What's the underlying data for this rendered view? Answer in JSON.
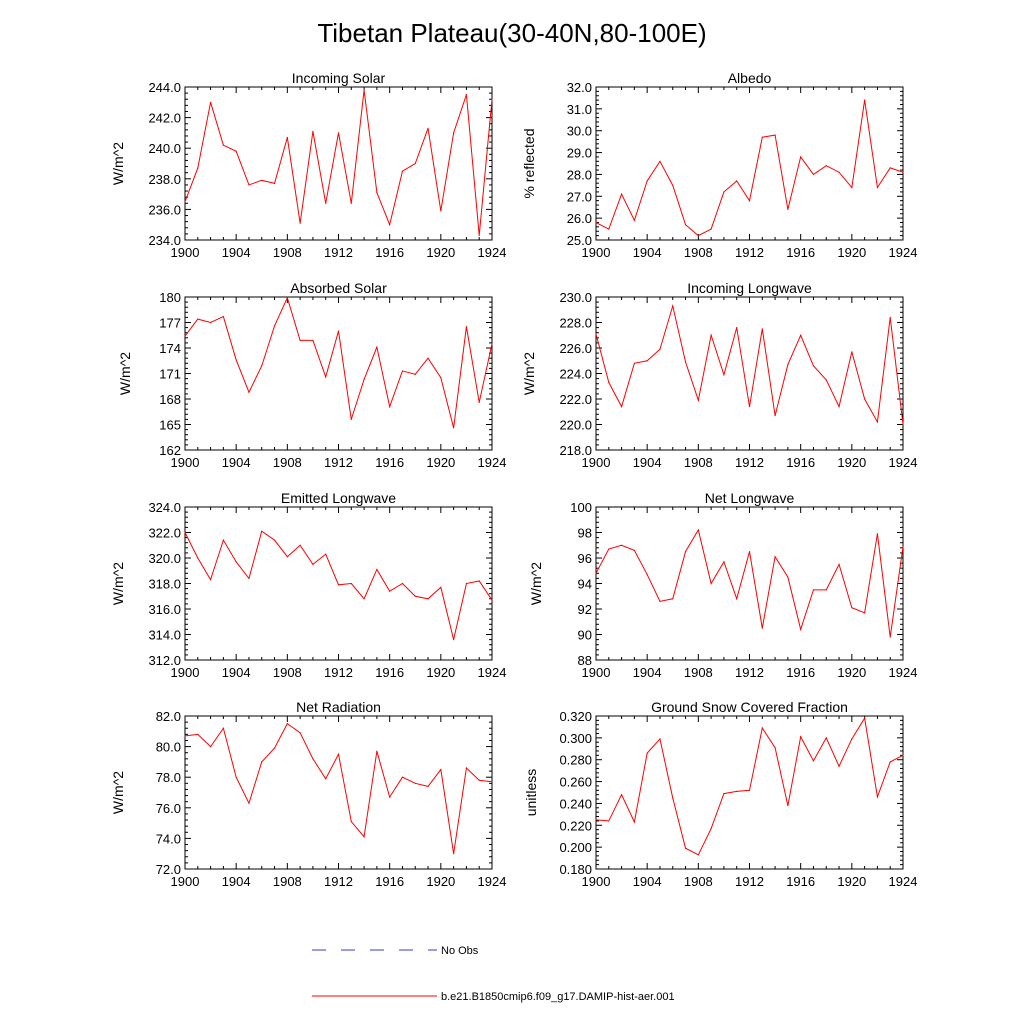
{
  "figure_title": "Tibetan Plateau(30-40N,80-100E)",
  "legend": {
    "entries": [
      {
        "label": "No Obs",
        "color": "#3a3acd",
        "dash": true
      },
      {
        "label": "b.e21.B1850cmip6.f09_g17.DAMIP-hist-aer.001",
        "color": "#ff0000",
        "dash": false
      }
    ]
  },
  "chart_data": [
    {
      "type": "line",
      "title": "Incoming Solar",
      "ylabel": "W/m^2",
      "xlim": [
        1900,
        1924
      ],
      "xticks": [
        1900,
        1904,
        1908,
        1912,
        1916,
        1920,
        1924
      ],
      "ylim": [
        234,
        244
      ],
      "yticks": [
        234,
        236,
        238,
        240,
        242,
        244
      ],
      "ydecimals": 1,
      "x": [
        1900,
        1901,
        1902,
        1903,
        1904,
        1905,
        1906,
        1907,
        1908,
        1909,
        1910,
        1911,
        1912,
        1913,
        1914,
        1915,
        1916,
        1917,
        1918,
        1919,
        1920,
        1921,
        1922,
        1923,
        1924
      ],
      "series": [
        {
          "color": "#ff0000",
          "values": [
            236.5,
            238.7,
            243.0,
            240.2,
            239.8,
            237.6,
            237.9,
            237.7,
            240.7,
            235.1,
            241.1,
            236.4,
            241.0,
            236.4,
            243.8,
            237.1,
            235.0,
            238.5,
            239.0,
            241.3,
            235.9,
            241.0,
            243.5,
            234.3,
            243.2
          ]
        }
      ]
    },
    {
      "type": "line",
      "title": "Albedo",
      "ylabel": "% reflected",
      "xlim": [
        1900,
        1924
      ],
      "xticks": [
        1900,
        1904,
        1908,
        1912,
        1916,
        1920,
        1924
      ],
      "ylim": [
        25,
        32
      ],
      "yticks": [
        25,
        26,
        27,
        28,
        29,
        30,
        31,
        32
      ],
      "ydecimals": 1,
      "x": [
        1900,
        1901,
        1902,
        1903,
        1904,
        1905,
        1906,
        1907,
        1908,
        1909,
        1910,
        1911,
        1912,
        1913,
        1914,
        1915,
        1916,
        1917,
        1918,
        1919,
        1920,
        1921,
        1922,
        1923,
        1924
      ],
      "series": [
        {
          "color": "#ff0000",
          "values": [
            25.8,
            25.5,
            27.1,
            25.9,
            27.7,
            28.6,
            27.5,
            25.7,
            25.2,
            25.5,
            27.2,
            27.7,
            26.8,
            29.7,
            29.8,
            26.4,
            28.8,
            28.0,
            28.4,
            28.1,
            27.4,
            31.4,
            27.4,
            28.3,
            28.1
          ]
        }
      ]
    },
    {
      "type": "line",
      "title": "Absorbed Solar",
      "ylabel": "W/m^2",
      "xlim": [
        1900,
        1924
      ],
      "xticks": [
        1900,
        1904,
        1908,
        1912,
        1916,
        1920,
        1924
      ],
      "ylim": [
        162,
        180
      ],
      "yticks": [
        162,
        165,
        168,
        171,
        174,
        177,
        180
      ],
      "ydecimals": 0,
      "x": [
        1900,
        1901,
        1902,
        1903,
        1904,
        1905,
        1906,
        1907,
        1908,
        1909,
        1910,
        1911,
        1912,
        1913,
        1914,
        1915,
        1916,
        1917,
        1918,
        1919,
        1920,
        1921,
        1922,
        1923,
        1924
      ],
      "series": [
        {
          "color": "#ff0000",
          "values": [
            175.4,
            177.4,
            177.0,
            177.7,
            172.6,
            168.8,
            171.9,
            176.6,
            179.9,
            174.9,
            174.9,
            170.6,
            176.0,
            165.6,
            170.3,
            174.1,
            167.1,
            171.3,
            170.9,
            172.8,
            170.5,
            164.6,
            176.5,
            167.6,
            174.5
          ]
        }
      ]
    },
    {
      "type": "line",
      "title": "Incoming Longwave",
      "ylabel": "W/m^2",
      "xlim": [
        1900,
        1924
      ],
      "xticks": [
        1900,
        1904,
        1908,
        1912,
        1916,
        1920,
        1924
      ],
      "ylim": [
        218,
        230
      ],
      "yticks": [
        218,
        220,
        222,
        224,
        226,
        228,
        230
      ],
      "ydecimals": 1,
      "x": [
        1900,
        1901,
        1902,
        1903,
        1904,
        1905,
        1906,
        1907,
        1908,
        1909,
        1910,
        1911,
        1912,
        1913,
        1914,
        1915,
        1916,
        1917,
        1918,
        1919,
        1920,
        1921,
        1922,
        1923,
        1924
      ],
      "series": [
        {
          "color": "#ff0000",
          "values": [
            227.1,
            223.3,
            221.4,
            224.8,
            225.0,
            225.9,
            229.3,
            224.9,
            221.9,
            227.0,
            223.9,
            227.6,
            221.4,
            227.5,
            220.7,
            224.7,
            227.0,
            224.6,
            223.5,
            221.4,
            225.7,
            222.0,
            220.2,
            228.4,
            220.0
          ]
        }
      ]
    },
    {
      "type": "line",
      "title": "Emitted Longwave",
      "ylabel": "W/m^2",
      "xlim": [
        1900,
        1924
      ],
      "xticks": [
        1900,
        1904,
        1908,
        1912,
        1916,
        1920,
        1924
      ],
      "ylim": [
        312,
        324
      ],
      "yticks": [
        312,
        314,
        316,
        318,
        320,
        322,
        324
      ],
      "ydecimals": 1,
      "x": [
        1900,
        1901,
        1902,
        1903,
        1904,
        1905,
        1906,
        1907,
        1908,
        1909,
        1910,
        1911,
        1912,
        1913,
        1914,
        1915,
        1916,
        1917,
        1918,
        1919,
        1920,
        1921,
        1922,
        1923,
        1924
      ],
      "series": [
        {
          "color": "#ff0000",
          "values": [
            322.0,
            320.0,
            318.3,
            321.4,
            319.7,
            318.4,
            322.1,
            321.4,
            320.1,
            321.0,
            319.5,
            320.3,
            317.9,
            318.0,
            316.8,
            319.1,
            317.4,
            318.0,
            317.0,
            316.8,
            317.7,
            313.6,
            318.0,
            318.2,
            316.7
          ]
        }
      ]
    },
    {
      "type": "line",
      "title": "Net Longwave",
      "ylabel": "W/m^2",
      "xlim": [
        1900,
        1924
      ],
      "xticks": [
        1900,
        1904,
        1908,
        1912,
        1916,
        1920,
        1924
      ],
      "ylim": [
        88,
        100
      ],
      "yticks": [
        88,
        90,
        92,
        94,
        96,
        98,
        100
      ],
      "ydecimals": 0,
      "x": [
        1900,
        1901,
        1902,
        1903,
        1904,
        1905,
        1906,
        1907,
        1908,
        1909,
        1910,
        1911,
        1912,
        1913,
        1914,
        1915,
        1916,
        1917,
        1918,
        1919,
        1920,
        1921,
        1922,
        1923,
        1924
      ],
      "series": [
        {
          "color": "#ff0000",
          "values": [
            94.8,
            96.7,
            97.0,
            96.6,
            94.7,
            92.6,
            92.8,
            96.5,
            98.2,
            94.0,
            95.7,
            92.8,
            96.5,
            90.5,
            96.1,
            94.5,
            90.4,
            93.5,
            93.5,
            95.5,
            92.1,
            91.7,
            97.9,
            89.8,
            96.9
          ]
        }
      ]
    },
    {
      "type": "line",
      "title": "Net Radiation",
      "ylabel": "W/m^2",
      "xlim": [
        1900,
        1924
      ],
      "xticks": [
        1900,
        1904,
        1908,
        1912,
        1916,
        1920,
        1924
      ],
      "ylim": [
        72,
        82
      ],
      "yticks": [
        72,
        74,
        76,
        78,
        80,
        82
      ],
      "ydecimals": 1,
      "x": [
        1900,
        1901,
        1902,
        1903,
        1904,
        1905,
        1906,
        1907,
        1908,
        1909,
        1910,
        1911,
        1912,
        1913,
        1914,
        1915,
        1916,
        1917,
        1918,
        1919,
        1920,
        1921,
        1922,
        1923,
        1924
      ],
      "series": [
        {
          "color": "#ff0000",
          "values": [
            80.7,
            80.8,
            80.0,
            81.2,
            78.0,
            76.3,
            79.0,
            79.9,
            81.5,
            80.9,
            79.2,
            77.9,
            79.5,
            75.1,
            74.1,
            79.7,
            76.7,
            78.0,
            77.6,
            77.4,
            78.5,
            73.0,
            78.6,
            77.8,
            77.7
          ]
        }
      ]
    },
    {
      "type": "line",
      "title": "Ground Snow Covered Fraction",
      "ylabel": "unitless",
      "xlim": [
        1900,
        1924
      ],
      "xticks": [
        1900,
        1904,
        1908,
        1912,
        1916,
        1920,
        1924
      ],
      "ylim": [
        0.18,
        0.32
      ],
      "yticks": [
        0.18,
        0.2,
        0.22,
        0.24,
        0.26,
        0.28,
        0.3,
        0.32
      ],
      "ydecimals": 3,
      "x": [
        1900,
        1901,
        1902,
        1903,
        1904,
        1905,
        1906,
        1907,
        1908,
        1909,
        1910,
        1911,
        1912,
        1913,
        1914,
        1915,
        1916,
        1917,
        1918,
        1919,
        1920,
        1921,
        1922,
        1923,
        1924
      ],
      "series": [
        {
          "color": "#ff0000",
          "values": [
            0.225,
            0.224,
            0.248,
            0.223,
            0.286,
            0.299,
            0.245,
            0.199,
            0.193,
            0.217,
            0.249,
            0.251,
            0.252,
            0.309,
            0.291,
            0.238,
            0.301,
            0.279,
            0.3,
            0.274,
            0.299,
            0.318,
            0.246,
            0.278,
            0.284
          ]
        }
      ]
    }
  ]
}
